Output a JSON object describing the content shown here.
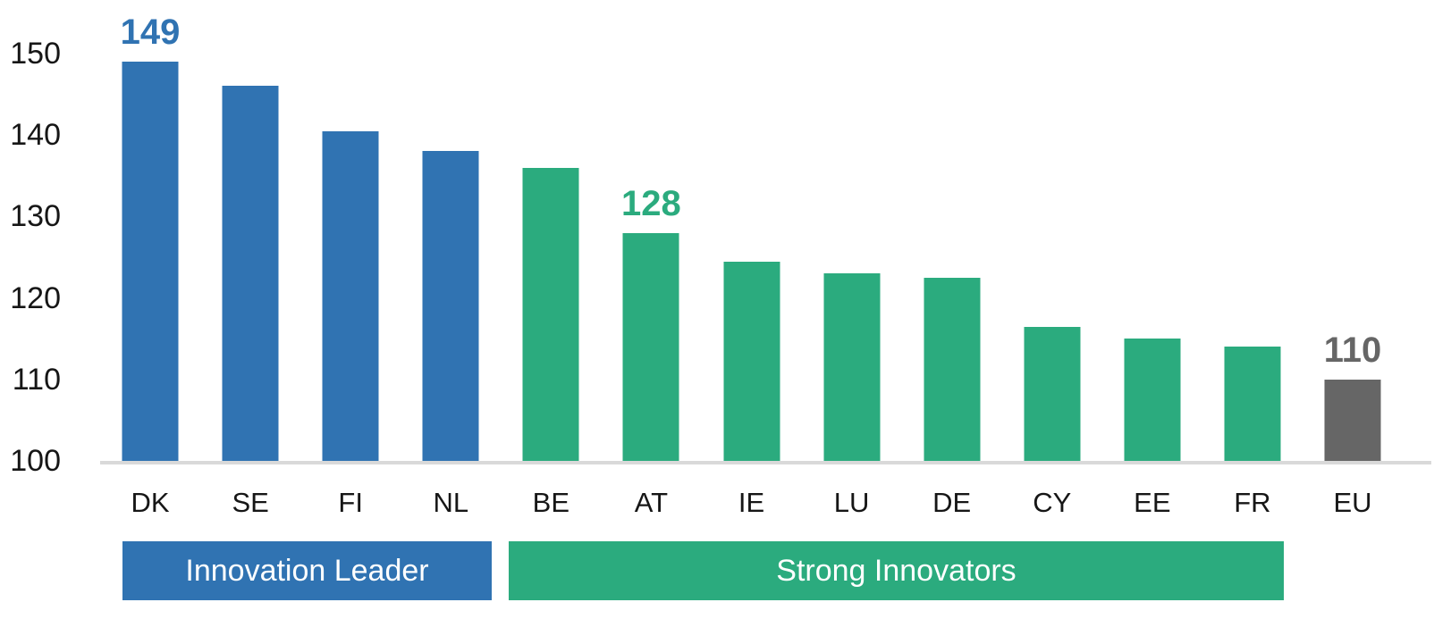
{
  "chart_data": {
    "type": "bar",
    "categories": [
      "DK",
      "SE",
      "FI",
      "NL",
      "BE",
      "AT",
      "IE",
      "LU",
      "DE",
      "CY",
      "EE",
      "FR",
      "EU"
    ],
    "values": [
      149,
      146,
      140.5,
      138,
      136,
      128,
      124.5,
      123,
      122.5,
      116.5,
      115,
      114,
      110
    ],
    "groups": [
      "leader",
      "leader",
      "leader",
      "leader",
      "strong",
      "strong",
      "strong",
      "strong",
      "strong",
      "strong",
      "strong",
      "strong",
      "eu"
    ],
    "value_labels": [
      {
        "index": 0,
        "text": "149"
      },
      {
        "index": 5,
        "text": "128"
      },
      {
        "index": 12,
        "text": "110"
      }
    ],
    "yticks": [
      100,
      110,
      120,
      130,
      140,
      150
    ],
    "ylim": [
      100,
      156
    ],
    "grid": false,
    "legend_position": "bottom-bands",
    "legend_bands": [
      {
        "label": "Innovation Leader",
        "group": "leader"
      },
      {
        "label": "Strong Innovators",
        "group": "strong"
      }
    ],
    "colors": {
      "leader": "#3073B2",
      "strong": "#2BAB7E",
      "eu": "#666666",
      "baseline": "#D9D9D9",
      "tick_text": "#161616",
      "band_text": "#FFFFFF"
    }
  }
}
